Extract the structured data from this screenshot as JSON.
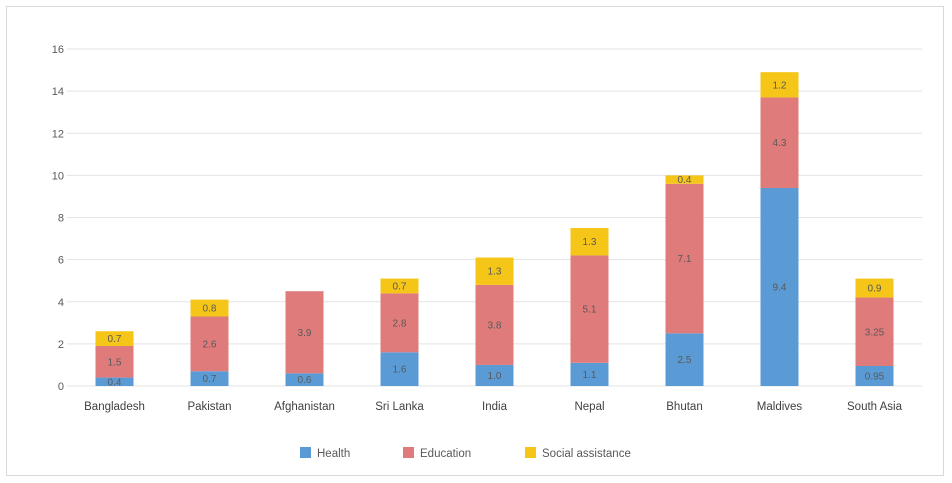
{
  "chart_data": {
    "type": "bar",
    "stacked": true,
    "categories": [
      "Bangladesh",
      "Pakistan",
      "Afghanistan",
      "Sri Lanka",
      "India",
      "Nepal",
      "Bhutan",
      "Maldives",
      "South Asia"
    ],
    "series": [
      {
        "name": "Health",
        "values": [
          0.4,
          0.7,
          0.6,
          1.6,
          1.0,
          1.1,
          2.5,
          9.4,
          0.95
        ],
        "labels": [
          "0.4",
          "0.7",
          "0.6",
          "1.6",
          "1.0",
          "1.1",
          "2.5",
          "9.4",
          "0.95"
        ]
      },
      {
        "name": "Education",
        "values": [
          1.5,
          2.6,
          3.9,
          2.8,
          3.8,
          5.1,
          7.1,
          4.3,
          3.25
        ],
        "labels": [
          "1.5",
          "2.6",
          "3.9",
          "2.8",
          "3.8",
          "5.1",
          "7.1",
          "4.3",
          "3.25"
        ]
      },
      {
        "name": "Social assistance",
        "values": [
          0.7,
          0.8,
          0.0,
          0.7,
          1.3,
          1.3,
          0.4,
          1.2,
          0.9
        ],
        "labels": [
          "0.7",
          "0.8",
          "",
          "0.7",
          "1.3",
          "1.3",
          "0.4",
          "1.2",
          "0.9"
        ]
      }
    ],
    "ylim": [
      0,
      16
    ],
    "yticks": [
      "0",
      "2",
      "4",
      "6",
      "8",
      "10",
      "12",
      "14",
      "16"
    ],
    "grid": true,
    "legend_position": "bottom",
    "colors": [
      "#5b9bd5",
      "#e07b7b",
      "#f5c518"
    ]
  }
}
